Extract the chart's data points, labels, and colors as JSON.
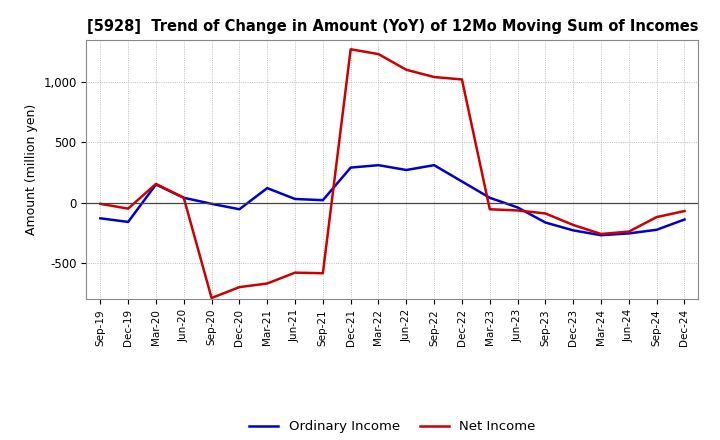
{
  "title": "[5928]  Trend of Change in Amount (YoY) of 12Mo Moving Sum of Incomes",
  "ylabel": "Amount (million yen)",
  "x_labels": [
    "Sep-19",
    "Dec-19",
    "Mar-20",
    "Jun-20",
    "Sep-20",
    "Dec-20",
    "Mar-21",
    "Jun-21",
    "Sep-21",
    "Dec-21",
    "Mar-22",
    "Jun-22",
    "Sep-22",
    "Dec-22",
    "Mar-23",
    "Jun-23",
    "Sep-23",
    "Dec-23",
    "Mar-24",
    "Jun-24",
    "Sep-24",
    "Dec-24"
  ],
  "ordinary_income": [
    -130,
    -160,
    150,
    40,
    -10,
    -55,
    120,
    30,
    20,
    290,
    310,
    270,
    310,
    175,
    40,
    -40,
    -165,
    -230,
    -270,
    -255,
    -225,
    -140
  ],
  "net_income": [
    -10,
    -50,
    155,
    40,
    -790,
    -700,
    -670,
    -580,
    -585,
    1270,
    1230,
    1100,
    1040,
    1020,
    -55,
    -65,
    -90,
    -185,
    -260,
    -240,
    -120,
    -70
  ],
  "ordinary_income_color": "#0000CC",
  "net_income_color": "#CC0000",
  "background_color": "#FFFFFF",
  "grid_color": "#999999",
  "ylim": [
    -800,
    1350
  ],
  "yticks": [
    -500,
    0,
    500,
    1000
  ],
  "legend_labels": [
    "Ordinary Income",
    "Net Income"
  ]
}
